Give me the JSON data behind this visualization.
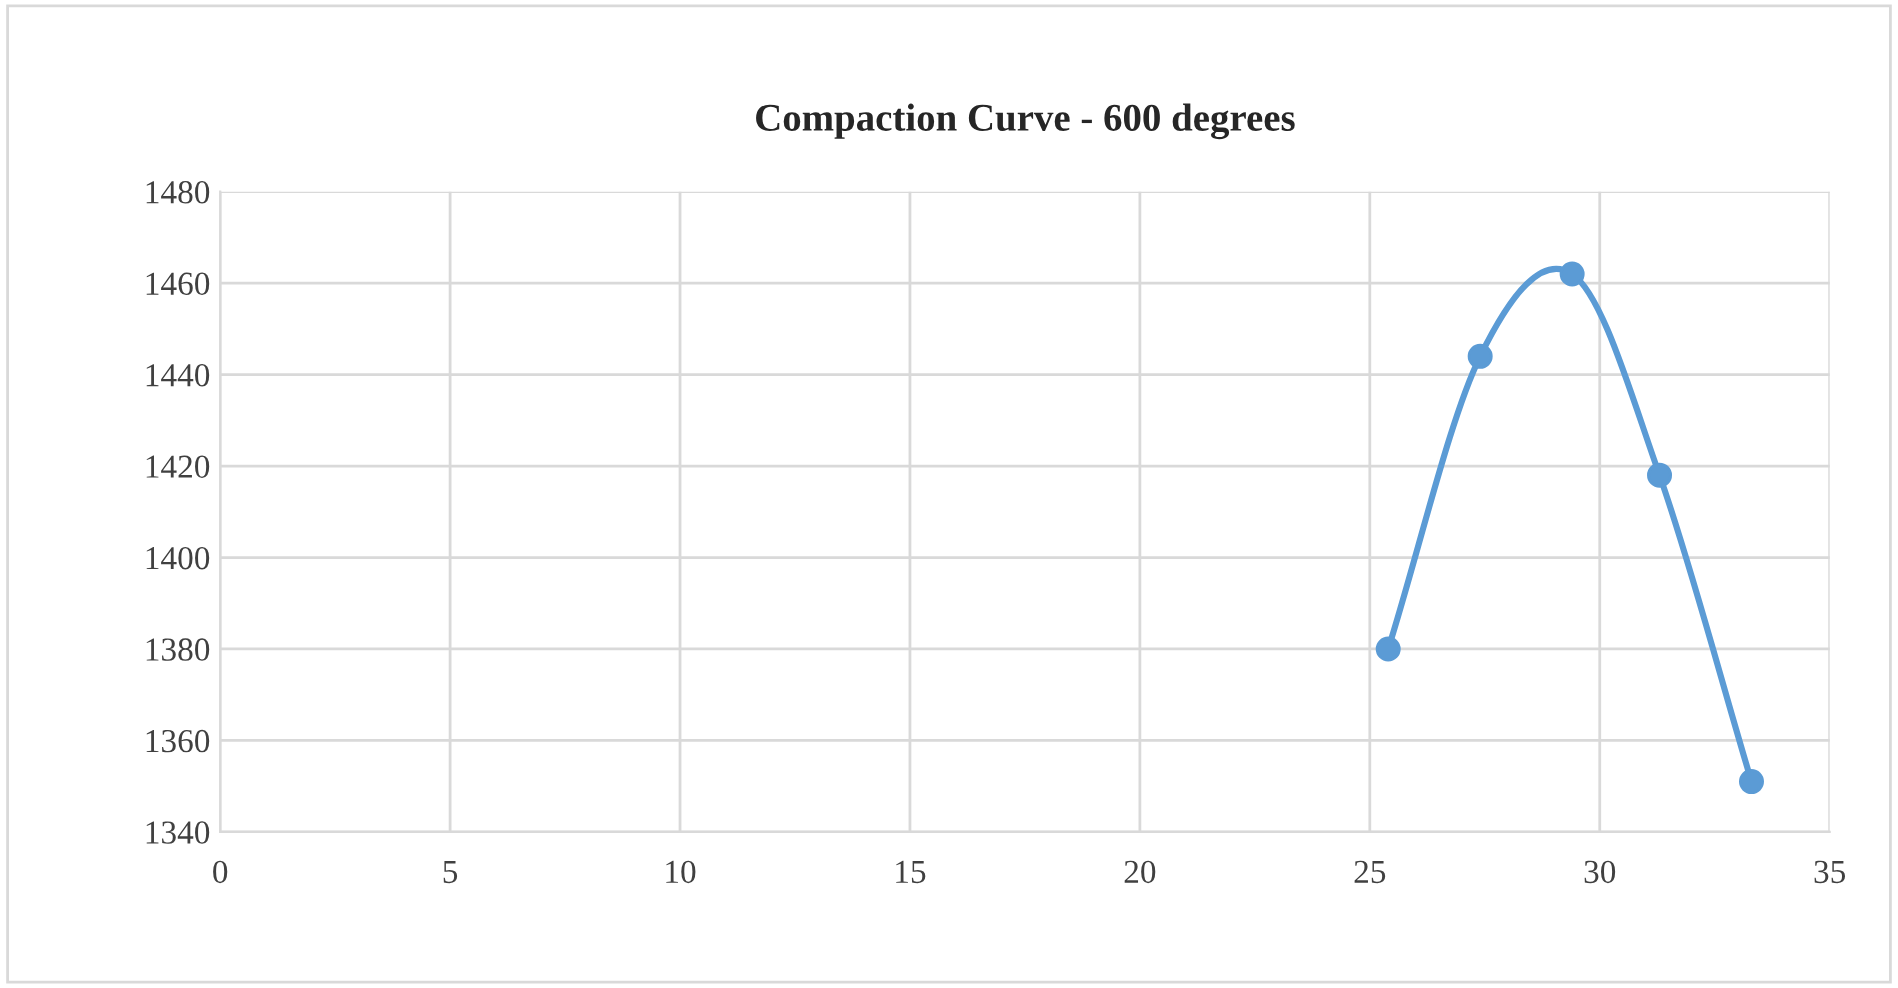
{
  "chart_data": {
    "type": "line",
    "title": "Compaction Curve - 600 degrees",
    "x": [
      25.4,
      27.4,
      29.4,
      31.3,
      33.3
    ],
    "series": [
      {
        "color": "#5b9bd5",
        "values": [
          1380,
          1444,
          1462,
          1418,
          1351
        ]
      }
    ],
    "xlim": [
      0,
      35
    ],
    "xticks": [
      0,
      5,
      10,
      15,
      20,
      25,
      30,
      35
    ],
    "ylim": [
      1340,
      1480
    ],
    "yticks": [
      1340,
      1360,
      1380,
      1400,
      1420,
      1440,
      1460,
      1480
    ],
    "grid": true,
    "marker": "circle",
    "line_style": "solid"
  }
}
